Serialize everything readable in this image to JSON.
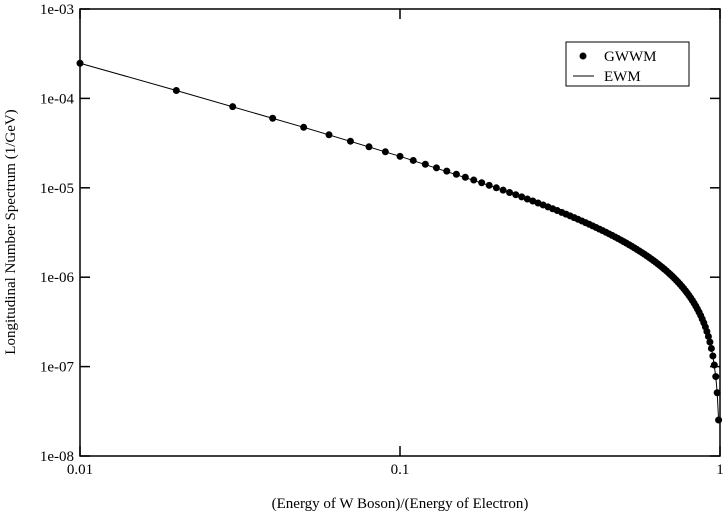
{
  "chart_data": {
    "type": "line-scatter",
    "xlabel": "(Energy of W Boson)/(Energy of Electron)",
    "ylabel": "Longitudinal Number Spectrum (1/GeV)",
    "xscale": "log",
    "yscale": "log",
    "xlim": [
      0.01,
      1
    ],
    "ylim": [
      1e-08,
      0.001
    ],
    "xticks": [
      0.01,
      0.1,
      1
    ],
    "yticks": [
      {
        "value": 1e-08,
        "label": "1e-08"
      },
      {
        "value": 1e-07,
        "label": "1e-07"
      },
      {
        "value": 1e-06,
        "label": "1e-06"
      },
      {
        "value": 1e-05,
        "label": "1e-05"
      },
      {
        "value": 0.0001,
        "label": "1e-04"
      },
      {
        "value": 0.001,
        "label": "1e-03"
      }
    ],
    "legend": "upper right",
    "series": [
      {
        "name": "GWWM",
        "kind": "scatter",
        "color": "#000000",
        "x": [
          0.01,
          0.02,
          0.03,
          0.04,
          0.05,
          0.06,
          0.07,
          0.08,
          0.09,
          0.1,
          0.11,
          0.12,
          0.13,
          0.14,
          0.15,
          0.16,
          0.17,
          0.18,
          0.19,
          0.2,
          0.21,
          0.22,
          0.23,
          0.24,
          0.25,
          0.26,
          0.27,
          0.28,
          0.29,
          0.3,
          0.31,
          0.32,
          0.33,
          0.34,
          0.35,
          0.36,
          0.37,
          0.38,
          0.39,
          0.4,
          0.41,
          0.42,
          0.43,
          0.44,
          0.45,
          0.46,
          0.47,
          0.48,
          0.49,
          0.5,
          0.51,
          0.52,
          0.53,
          0.54,
          0.55,
          0.56,
          0.57,
          0.58,
          0.59,
          0.6,
          0.61,
          0.62,
          0.63,
          0.64,
          0.65,
          0.66,
          0.67,
          0.68,
          0.69,
          0.7,
          0.71,
          0.72,
          0.73,
          0.74,
          0.75,
          0.76,
          0.77,
          0.78,
          0.79,
          0.8,
          0.81,
          0.82,
          0.83,
          0.84,
          0.85,
          0.86,
          0.87,
          0.88,
          0.89,
          0.9,
          0.91,
          0.92,
          0.93,
          0.94,
          0.95,
          0.96,
          0.97,
          0.98,
          0.99
        ],
        "values": [
          0.0002475,
          0.0001225,
          8.083e-05,
          6e-05,
          4.75e-05,
          3.917e-05,
          3.321e-05,
          2.875e-05,
          2.528e-05,
          2.25e-05,
          2.023e-05,
          1.833e-05,
          1.673e-05,
          1.536e-05,
          1.417e-05,
          1.3125e-05,
          1.221e-05,
          1.139e-05,
          1.066e-05,
          1e-05,
          9.405e-06,
          8.864e-06,
          8.37e-06,
          7.917e-06,
          7.5e-06,
          7.115e-06,
          6.759e-06,
          6.429e-06,
          6.121e-06,
          5.833e-06,
          5.565e-06,
          5.3125e-06,
          5.076e-06,
          4.853e-06,
          4.643e-06,
          4.444e-06,
          4.257e-06,
          4.079e-06,
          3.91e-06,
          3.75e-06,
          3.598e-06,
          3.452e-06,
          3.314e-06,
          3.182e-06,
          3.056e-06,
          2.935e-06,
          2.819e-06,
          2.708e-06,
          2.602e-06,
          2.5e-06,
          2.402e-06,
          2.308e-06,
          2.217e-06,
          2.13e-06,
          2.045e-06,
          1.964e-06,
          1.886e-06,
          1.81e-06,
          1.737e-06,
          1.667e-06,
          1.598e-06,
          1.532e-06,
          1.468e-06,
          1.406e-06,
          1.346e-06,
          1.288e-06,
          1.231e-06,
          1.176e-06,
          1.123e-06,
          1.071e-06,
          1.021e-06,
          9.722e-07,
          9.247e-07,
          8.784e-07,
          8.333e-07,
          7.895e-07,
          7.468e-07,
          7.051e-07,
          6.646e-07,
          6.25e-07,
          5.864e-07,
          5.488e-07,
          5.12e-07,
          4.762e-07,
          4.412e-07,
          4.07e-07,
          3.736e-07,
          3.409e-07,
          3.09e-07,
          2.778e-07,
          2.473e-07,
          2.174e-07,
          1.882e-07,
          1.596e-07,
          1.316e-07,
          1.042e-07,
          7.732e-08,
          5.102e-08,
          2.525e-08
        ]
      },
      {
        "name": "EWM",
        "kind": "line",
        "color": "#000000",
        "x": [
          0.01,
          0.02,
          0.05,
          0.1,
          0.2,
          0.3,
          0.4,
          0.5,
          0.6,
          0.7,
          0.8,
          0.85,
          0.9,
          0.93,
          0.95,
          0.97,
          0.98,
          0.99
        ],
        "values": [
          0.0002475,
          0.0001225,
          4.75e-05,
          2.25e-05,
          1e-05,
          5.833e-06,
          3.75e-06,
          2.5e-06,
          1.667e-06,
          1.071e-06,
          6.25e-07,
          4.412e-07,
          2.778e-07,
          1.882e-07,
          1.316e-07,
          7.732e-08,
          5.102e-08,
          2.525e-08
        ]
      }
    ]
  }
}
